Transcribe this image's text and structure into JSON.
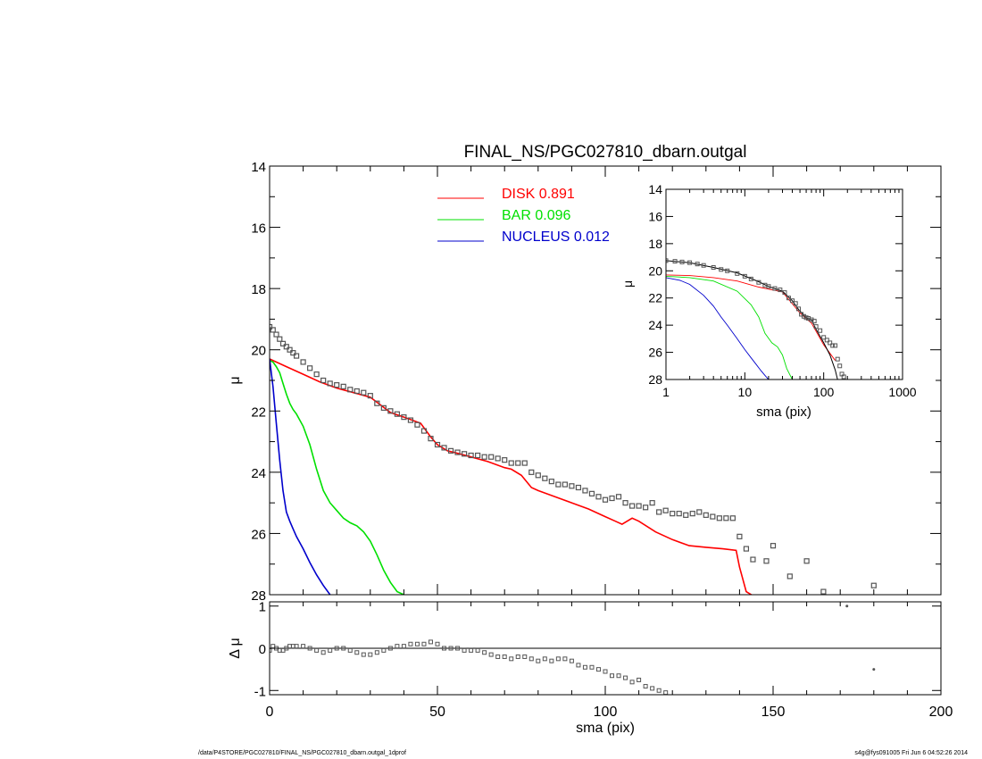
{
  "footer": {
    "path": "/data/P4STORE/PGC027810/FINAL_NS/PGC027810_dbarn.outgal_1dprof",
    "user_time": "s4g@fys091005  Fri Jun  6 04:52:26 2014"
  },
  "chart_data": [
    {
      "type": "line",
      "title": "FINAL_NS/PGC027810_dbarn.outgal",
      "xlabel": "",
      "ylabel": "μ",
      "xlim": [
        0,
        200
      ],
      "ylim": [
        28,
        14
      ],
      "yticks": [
        14,
        16,
        18,
        20,
        22,
        24,
        26,
        28
      ],
      "series": [
        {
          "name": "DISK",
          "fraction": "0.891",
          "color": "#ff0000",
          "x": [
            0,
            5,
            10,
            15,
            20,
            25,
            30,
            33,
            36,
            40,
            45,
            48,
            50,
            53,
            55,
            60,
            65,
            70,
            72,
            75,
            78,
            80,
            85,
            90,
            95,
            100,
            103,
            105,
            108,
            110,
            115,
            120,
            125,
            130,
            135,
            139,
            140,
            142,
            145,
            150,
            155,
            160
          ],
          "y": [
            20.3,
            20.55,
            20.8,
            21.05,
            21.25,
            21.4,
            21.55,
            21.8,
            22.05,
            22.2,
            22.4,
            22.85,
            23.1,
            23.3,
            23.35,
            23.5,
            23.65,
            23.85,
            23.9,
            24.1,
            24.5,
            24.6,
            24.8,
            25.0,
            25.2,
            25.45,
            25.6,
            25.7,
            25.5,
            25.6,
            25.95,
            26.2,
            26.4,
            26.45,
            26.5,
            26.55,
            27.1,
            27.9,
            28.1,
            28.3,
            28.5,
            28.7
          ]
        },
        {
          "name": "BAR",
          "fraction": "0.096",
          "color": "#00e000",
          "x": [
            0,
            1,
            2,
            3,
            4,
            5,
            6,
            7,
            8,
            10,
            12,
            14,
            16,
            18,
            20,
            22,
            24,
            26,
            28,
            30,
            32,
            34,
            36,
            38,
            40
          ],
          "y": [
            20.35,
            20.4,
            20.55,
            20.75,
            21.1,
            21.45,
            21.75,
            21.95,
            22.1,
            22.5,
            23.1,
            23.9,
            24.6,
            25.0,
            25.25,
            25.5,
            25.65,
            25.75,
            25.95,
            26.25,
            26.7,
            27.2,
            27.6,
            27.9,
            28.0
          ]
        },
        {
          "name": "NUCLEUS",
          "fraction": "0.012",
          "color": "#0000cc",
          "x": [
            0,
            1,
            2,
            3,
            4,
            5,
            6,
            7,
            8,
            10,
            12,
            14,
            16,
            18,
            20
          ],
          "y": [
            20.3,
            21.2,
            22.4,
            23.6,
            24.6,
            25.3,
            25.6,
            25.85,
            26.1,
            26.5,
            26.95,
            27.35,
            27.7,
            28.0,
            28.2
          ]
        },
        {
          "name": "",
          "marker": "square",
          "color": "#555555",
          "x": [
            0,
            1,
            2,
            3,
            4,
            5,
            6,
            7,
            8,
            10,
            12,
            14,
            16,
            18,
            20,
            22,
            24,
            26,
            28,
            30,
            32,
            34,
            36,
            38,
            40,
            42,
            44,
            46,
            48,
            50,
            52,
            54,
            56,
            58,
            60,
            62,
            64,
            66,
            68,
            70,
            72,
            74,
            76,
            78,
            80,
            82,
            84,
            86,
            88,
            90,
            92,
            94,
            96,
            98,
            100,
            102,
            104,
            106,
            108,
            110,
            112,
            114,
            116,
            118,
            120,
            122,
            124,
            126,
            128,
            130,
            132,
            134,
            136,
            138,
            140,
            142,
            144,
            148,
            150,
            155,
            160,
            165,
            180
          ],
          "y": [
            19.25,
            19.35,
            19.5,
            19.65,
            19.8,
            19.9,
            20.0,
            20.1,
            20.2,
            20.4,
            20.6,
            20.8,
            21.0,
            21.1,
            21.15,
            21.2,
            21.3,
            21.35,
            21.4,
            21.5,
            21.75,
            21.9,
            22.0,
            22.1,
            22.2,
            22.3,
            22.45,
            22.65,
            22.9,
            23.1,
            23.2,
            23.3,
            23.35,
            23.4,
            23.45,
            23.45,
            23.5,
            23.5,
            23.55,
            23.6,
            23.7,
            23.7,
            23.7,
            24.0,
            24.1,
            24.2,
            24.3,
            24.4,
            24.4,
            24.45,
            24.5,
            24.6,
            24.7,
            24.8,
            24.9,
            24.85,
            24.8,
            25.0,
            25.1,
            25.1,
            25.15,
            25.0,
            25.3,
            25.25,
            25.35,
            25.35,
            25.4,
            25.35,
            25.3,
            25.4,
            25.45,
            25.5,
            25.5,
            25.5,
            26.1,
            26.5,
            26.85,
            26.9,
            26.4,
            27.4,
            26.9,
            27.9,
            27.7
          ]
        }
      ],
      "legend": "top-center"
    },
    {
      "type": "line",
      "xlabel": "sma (pix)",
      "ylabel": "Δ μ",
      "xlim": [
        0,
        200
      ],
      "ylim": [
        -1.1,
        1.1
      ],
      "xticks": [
        0,
        50,
        100,
        150,
        200
      ],
      "yticks": [
        1,
        0,
        -1
      ],
      "series": [
        {
          "name": "",
          "marker": "square",
          "color": "#555555",
          "x": [
            0,
            1,
            2,
            3,
            4,
            5,
            6,
            7,
            8,
            10,
            12,
            14,
            16,
            18,
            20,
            22,
            24,
            26,
            28,
            30,
            32,
            34,
            36,
            38,
            40,
            42,
            44,
            46,
            48,
            50,
            52,
            54,
            56,
            58,
            60,
            62,
            64,
            66,
            68,
            70,
            72,
            74,
            76,
            78,
            80,
            82,
            84,
            86,
            88,
            90,
            92,
            94,
            96,
            98,
            100,
            102,
            104,
            106,
            108,
            110,
            112,
            114,
            116,
            118
          ],
          "y": [
            -0.05,
            0.05,
            0.0,
            -0.05,
            -0.05,
            0.0,
            0.05,
            0.05,
            0.05,
            0.05,
            0.0,
            -0.05,
            -0.1,
            -0.05,
            0.0,
            0.0,
            -0.05,
            -0.1,
            -0.15,
            -0.15,
            -0.1,
            -0.05,
            0.0,
            0.05,
            0.05,
            0.1,
            0.1,
            0.1,
            0.15,
            0.1,
            0.0,
            0.0,
            0.0,
            -0.05,
            -0.05,
            -0.05,
            -0.1,
            -0.15,
            -0.2,
            -0.2,
            -0.25,
            -0.2,
            -0.2,
            -0.25,
            -0.3,
            -0.25,
            -0.3,
            -0.25,
            -0.25,
            -0.3,
            -0.4,
            -0.45,
            -0.45,
            -0.5,
            -0.55,
            -0.65,
            -0.65,
            -0.7,
            -0.8,
            -0.75,
            -0.9,
            -0.95,
            -1.0,
            -1.05
          ]
        },
        {
          "name": "",
          "marker": "dot",
          "color": "#555555",
          "x": [
            172,
            180
          ],
          "y": [
            1.0,
            -0.5
          ]
        }
      ]
    },
    {
      "type": "line",
      "xlabel": "sma (pix)",
      "ylabel": "μ",
      "xscale": "log",
      "xlim": [
        1,
        1000
      ],
      "ylim": [
        28,
        14
      ],
      "xticks": [
        1,
        10,
        100,
        1000
      ],
      "yticks": [
        14,
        16,
        18,
        20,
        22,
        24,
        26,
        28
      ],
      "series": [
        {
          "name": "",
          "color": "#ff0000",
          "x": [
            1,
            2,
            4,
            8,
            15,
            30,
            50,
            70,
            100,
            140
          ],
          "y": [
            20.3,
            20.35,
            20.5,
            20.75,
            21.2,
            21.55,
            23.1,
            23.85,
            25.45,
            26.6
          ]
        },
        {
          "name": "",
          "color": "#00e000",
          "x": [
            1,
            2,
            4,
            8,
            12,
            15,
            18,
            22,
            26,
            30,
            34,
            40
          ],
          "y": [
            20.4,
            20.5,
            20.75,
            21.5,
            22.5,
            23.4,
            24.6,
            25.3,
            25.6,
            26.2,
            27.2,
            28.0
          ]
        },
        {
          "name": "",
          "color": "#0000cc",
          "x": [
            1,
            1.5,
            2,
            3,
            4,
            5,
            6,
            8,
            10,
            12,
            14,
            16,
            18,
            20
          ],
          "y": [
            20.5,
            20.7,
            21.0,
            21.8,
            22.6,
            23.4,
            24.0,
            25.0,
            25.8,
            26.4,
            26.9,
            27.35,
            27.7,
            28.0
          ]
        },
        {
          "name": "",
          "color": "#000000",
          "x": [
            1,
            2,
            4,
            8,
            15,
            20,
            30,
            40,
            48,
            60,
            70,
            80,
            100,
            120,
            140,
            150
          ],
          "y": [
            19.25,
            19.4,
            19.75,
            20.15,
            20.8,
            21.15,
            21.5,
            22.2,
            22.85,
            23.45,
            23.6,
            24.3,
            25.3,
            26.2,
            27.3,
            28.0
          ]
        },
        {
          "name": "",
          "marker": "square",
          "color": "#555555",
          "x": [
            1,
            1.3,
            1.6,
            2,
            2.5,
            3,
            4,
            5,
            6,
            8,
            10,
            12,
            15,
            18,
            20,
            24,
            28,
            32,
            36,
            40,
            44,
            48,
            52,
            56,
            60,
            64,
            70,
            76,
            80,
            90,
            100,
            110,
            120,
            130,
            140,
            150,
            160,
            170,
            180
          ],
          "y": [
            19.25,
            19.3,
            19.35,
            19.4,
            19.5,
            19.6,
            19.75,
            19.9,
            20.0,
            20.2,
            20.4,
            20.6,
            20.85,
            21.05,
            21.15,
            21.3,
            21.4,
            21.6,
            22.0,
            22.2,
            22.4,
            22.8,
            23.2,
            23.35,
            23.45,
            23.5,
            23.6,
            23.7,
            24.1,
            24.4,
            24.9,
            25.1,
            25.3,
            25.5,
            25.5,
            26.5,
            27.0,
            27.6,
            27.8
          ]
        }
      ]
    }
  ]
}
